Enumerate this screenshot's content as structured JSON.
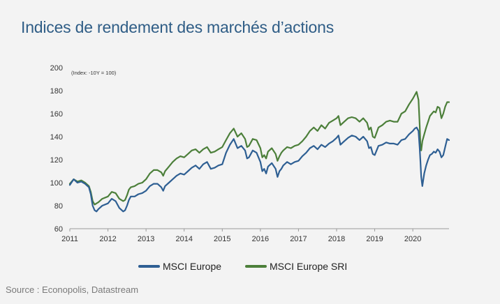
{
  "header": {
    "title": "Indices de rendement des marchés d’actions"
  },
  "footer": {
    "source": "Source : Econopolis, Datastream"
  },
  "chart_data": {
    "type": "line",
    "title": "",
    "annotation": "(Index: -10Y = 100)",
    "xlabel": "",
    "ylabel": "",
    "xlim": [
      2011.0,
      2020.95
    ],
    "ylim": [
      60,
      200
    ],
    "x_ticks": [
      "2011",
      "2012",
      "2013",
      "2014",
      "2015",
      "2016",
      "2017",
      "2018",
      "2019",
      "2020"
    ],
    "y_ticks": [
      60,
      80,
      100,
      120,
      140,
      160,
      180,
      200
    ],
    "grid": false,
    "legend_position": "bottom",
    "series": [
      {
        "name": "MSCI Europe",
        "color": "#2e5f93",
        "x": [
          2011.0,
          2011.1,
          2011.2,
          2011.3,
          2011.4,
          2011.5,
          2011.55,
          2011.6,
          2011.65,
          2011.7,
          2011.75,
          2011.85,
          2012.0,
          2012.1,
          2012.2,
          2012.3,
          2012.4,
          2012.45,
          2012.5,
          2012.55,
          2012.6,
          2012.7,
          2012.8,
          2012.9,
          2013.0,
          2013.1,
          2013.2,
          2013.3,
          2013.4,
          2013.45,
          2013.5,
          2013.6,
          2013.7,
          2013.8,
          2013.9,
          2014.0,
          2014.1,
          2014.2,
          2014.3,
          2014.4,
          2014.5,
          2014.6,
          2014.7,
          2014.8,
          2014.9,
          2015.0,
          2015.1,
          2015.2,
          2015.3,
          2015.4,
          2015.5,
          2015.6,
          2015.65,
          2015.7,
          2015.8,
          2015.9,
          2016.0,
          2016.05,
          2016.1,
          2016.15,
          2016.2,
          2016.3,
          2016.4,
          2016.45,
          2016.5,
          2016.55,
          2016.6,
          2016.7,
          2016.8,
          2016.9,
          2017.0,
          2017.1,
          2017.2,
          2017.3,
          2017.4,
          2017.5,
          2017.6,
          2017.7,
          2017.8,
          2017.9,
          2018.0,
          2018.05,
          2018.1,
          2018.2,
          2018.3,
          2018.4,
          2018.5,
          2018.6,
          2018.7,
          2018.8,
          2018.85,
          2018.9,
          2018.95,
          2019.0,
          2019.1,
          2019.2,
          2019.3,
          2019.4,
          2019.5,
          2019.6,
          2019.7,
          2019.8,
          2019.9,
          2020.0,
          2020.05,
          2020.1,
          2020.15,
          2020.18,
          2020.2,
          2020.22,
          2020.25,
          2020.3,
          2020.35,
          2020.4,
          2020.45,
          2020.5,
          2020.55,
          2020.6,
          2020.65,
          2020.7,
          2020.75,
          2020.8,
          2020.85,
          2020.9,
          2020.95
        ],
        "y": [
          98,
          103,
          100,
          101,
          99,
          96,
          90,
          80,
          76,
          75,
          77,
          80,
          82,
          86,
          84,
          78,
          75,
          76,
          80,
          85,
          88,
          88,
          90,
          91,
          93,
          97,
          99,
          99,
          96,
          93,
          97,
          100,
          103,
          106,
          108,
          107,
          110,
          113,
          115,
          112,
          116,
          118,
          112,
          113,
          115,
          116,
          126,
          133,
          138,
          130,
          132,
          128,
          121,
          122,
          128,
          126,
          118,
          110,
          112,
          108,
          114,
          117,
          112,
          105,
          110,
          112,
          115,
          118,
          116,
          118,
          119,
          123,
          126,
          130,
          132,
          129,
          133,
          131,
          134,
          136,
          139,
          141,
          133,
          136,
          139,
          141,
          140,
          137,
          140,
          136,
          130,
          131,
          125,
          124,
          132,
          133,
          135,
          134,
          134,
          133,
          137,
          138,
          142,
          145,
          147,
          148,
          145,
          130,
          118,
          105,
          97,
          108,
          115,
          120,
          124,
          125,
          127,
          126,
          129,
          127,
          122,
          124,
          131,
          138,
          137
        ]
      },
      {
        "name": "MSCI Europe SRI",
        "color": "#4c7f3a",
        "x": [
          2011.0,
          2011.1,
          2011.2,
          2011.3,
          2011.4,
          2011.5,
          2011.55,
          2011.6,
          2011.65,
          2011.7,
          2011.75,
          2011.85,
          2012.0,
          2012.1,
          2012.2,
          2012.3,
          2012.4,
          2012.45,
          2012.5,
          2012.55,
          2012.6,
          2012.7,
          2012.8,
          2012.9,
          2013.0,
          2013.1,
          2013.2,
          2013.3,
          2013.4,
          2013.45,
          2013.5,
          2013.6,
          2013.7,
          2013.8,
          2013.9,
          2014.0,
          2014.1,
          2014.2,
          2014.3,
          2014.4,
          2014.5,
          2014.6,
          2014.7,
          2014.8,
          2014.9,
          2015.0,
          2015.1,
          2015.2,
          2015.3,
          2015.4,
          2015.5,
          2015.6,
          2015.65,
          2015.7,
          2015.8,
          2015.9,
          2016.0,
          2016.05,
          2016.1,
          2016.15,
          2016.2,
          2016.3,
          2016.4,
          2016.45,
          2016.5,
          2016.55,
          2016.6,
          2016.7,
          2016.8,
          2016.9,
          2017.0,
          2017.1,
          2017.2,
          2017.3,
          2017.4,
          2017.5,
          2017.6,
          2017.7,
          2017.8,
          2017.9,
          2018.0,
          2018.05,
          2018.1,
          2018.2,
          2018.3,
          2018.4,
          2018.5,
          2018.6,
          2018.7,
          2018.8,
          2018.85,
          2018.9,
          2018.95,
          2019.0,
          2019.1,
          2019.2,
          2019.3,
          2019.4,
          2019.5,
          2019.6,
          2019.7,
          2019.8,
          2019.9,
          2020.0,
          2020.05,
          2020.1,
          2020.15,
          2020.18,
          2020.2,
          2020.22,
          2020.25,
          2020.3,
          2020.35,
          2020.4,
          2020.45,
          2020.5,
          2020.55,
          2020.6,
          2020.65,
          2020.7,
          2020.75,
          2020.8,
          2020.85,
          2020.9,
          2020.95
        ],
        "y": [
          99,
          103,
          101,
          102,
          100,
          97,
          92,
          84,
          81,
          82,
          83,
          86,
          88,
          92,
          91,
          86,
          84,
          85,
          89,
          94,
          96,
          97,
          99,
          100,
          103,
          108,
          111,
          111,
          109,
          106,
          110,
          114,
          118,
          121,
          123,
          122,
          125,
          128,
          129,
          126,
          129,
          131,
          126,
          127,
          129,
          131,
          137,
          143,
          147,
          140,
          143,
          138,
          131,
          132,
          138,
          137,
          130,
          122,
          124,
          121,
          127,
          130,
          125,
          119,
          123,
          126,
          128,
          131,
          130,
          132,
          133,
          136,
          140,
          145,
          148,
          145,
          150,
          147,
          152,
          154,
          156,
          158,
          150,
          153,
          156,
          157,
          156,
          153,
          156,
          152,
          146,
          148,
          140,
          139,
          148,
          150,
          153,
          154,
          153,
          153,
          160,
          162,
          168,
          173,
          176,
          179,
          172,
          150,
          132,
          128,
          136,
          142,
          148,
          153,
          158,
          160,
          162,
          161,
          166,
          165,
          156,
          160,
          166,
          170,
          170
        ]
      }
    ]
  }
}
